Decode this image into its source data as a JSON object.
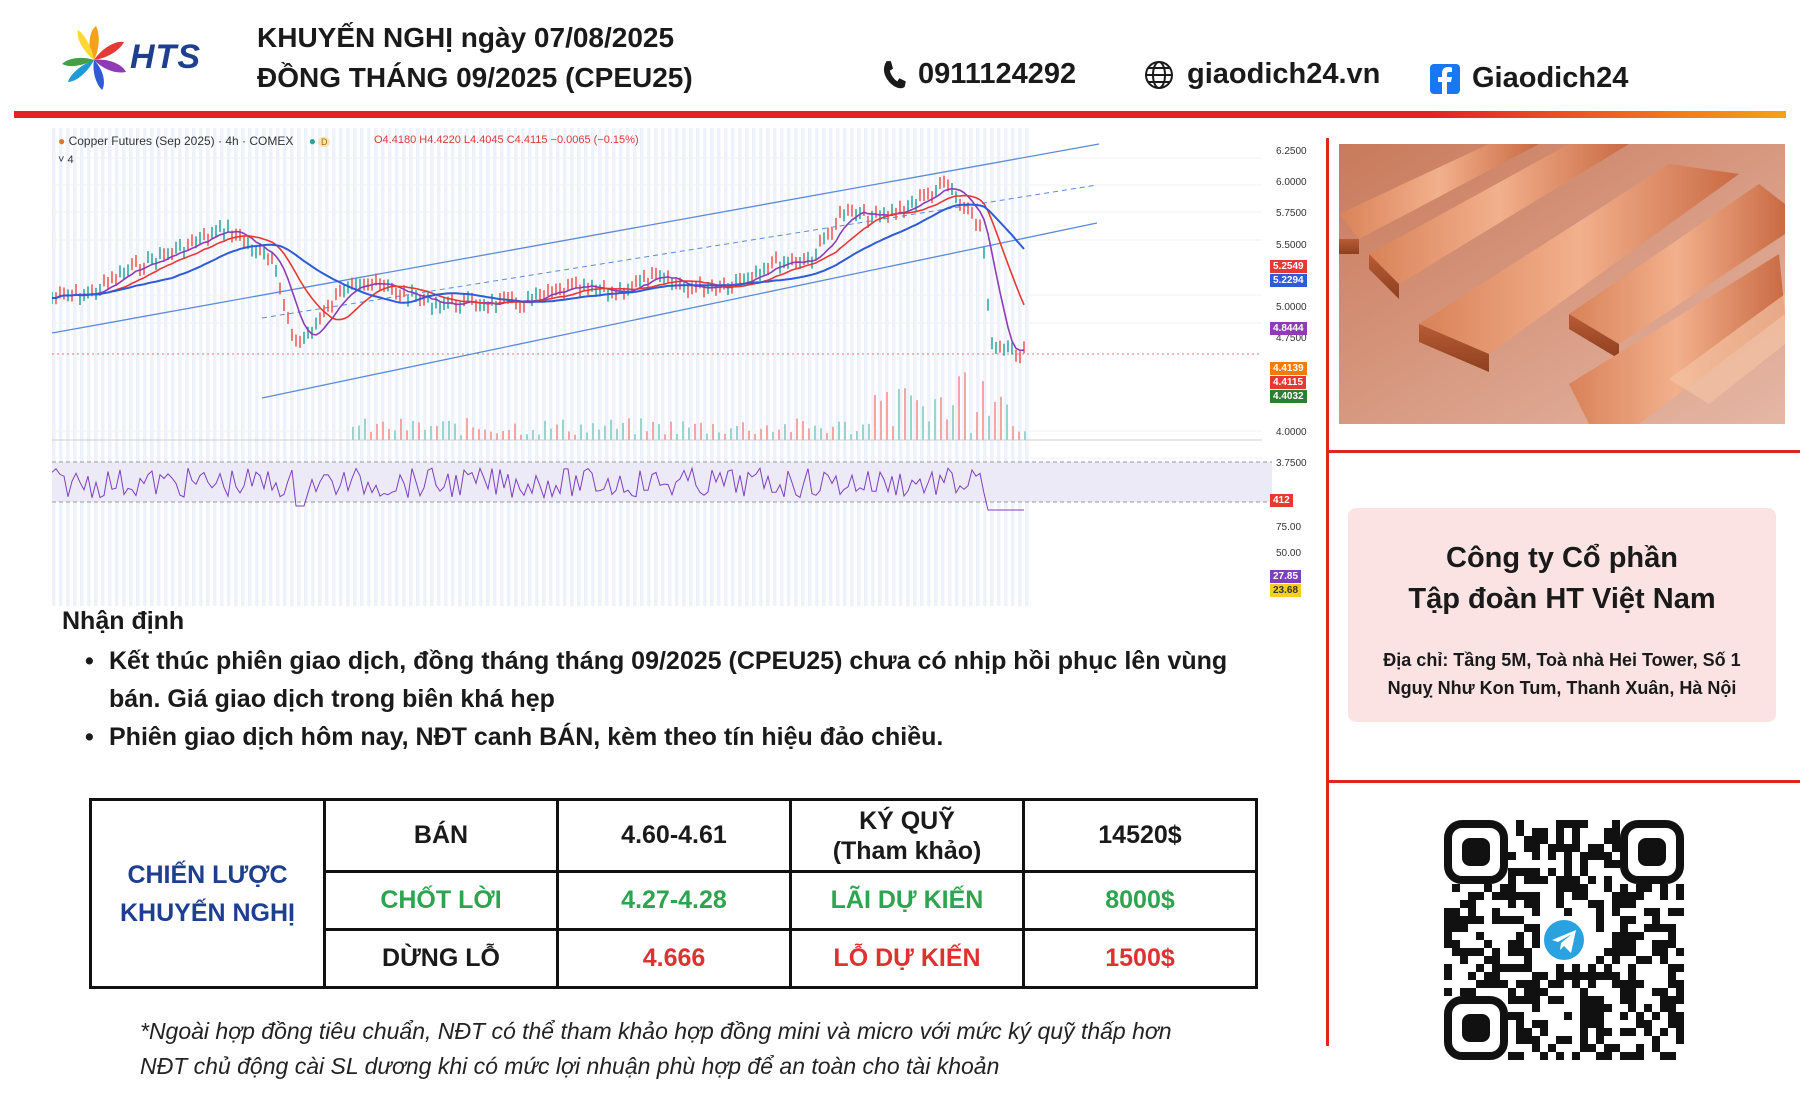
{
  "header": {
    "logo_text": "HTS",
    "title_line1": "KHUYẾN NGHỊ ngày 07/08/2025",
    "title_line2": "ĐỒNG THÁNG 09/2025 (CPEU25)",
    "phone": "0911124292",
    "website": "giaodich24.vn",
    "facebook": "Giaodich24"
  },
  "chart": {
    "title": "Copper Futures (Sep 2025) · 4h · COMEX",
    "ohlc": "O4.4180  H4.4220  L4.4045  C4.4115  −0.0065 (−0.15%)",
    "indicator_count": "4",
    "price_axis": [
      "6.2500",
      "6.0000",
      "5.7500",
      "5.5000",
      "5.0000",
      "4.7500",
      "4.0000",
      "3.7500"
    ],
    "price_tags": [
      {
        "label": "5.2549",
        "color": "#e53935"
      },
      {
        "label": "5.2294",
        "color": "#2f5bd6"
      },
      {
        "label": "4.8444",
        "color": "#8e3bb5"
      },
      {
        "label": "4.4139",
        "color": "#f57c00"
      },
      {
        "label": "4.4115",
        "color": "#e53935"
      },
      {
        "label": "4.4032",
        "color": "#2e7d32"
      }
    ],
    "volume_tag": "412",
    "rsi_axis": [
      "75.00",
      "50.00"
    ],
    "rsi_tags": [
      {
        "label": "27.85",
        "color": "#7e3fbf"
      },
      {
        "label": "23.68",
        "color": "#f5d020"
      }
    ],
    "colors": {
      "candle_up": "#26a69a",
      "candle_down": "#ef5350",
      "ma_fast": "#8e3bb5",
      "ma_mid": "#e53935",
      "ma_slow": "#2f5bd6",
      "channel": "#5b8bd9"
    }
  },
  "analysis": {
    "heading": "Nhận định",
    "bullet1_line1": "Kết thúc phiên giao dịch, đồng tháng tháng 09/2025 (CPEU25) chưa có nhịp hồi phục lên vùng",
    "bullet1_line2": "bán. Giá giao dịch trong biên khá hẹp",
    "bullet2": "Phiên giao dịch hôm nay, NĐT canh BÁN, kèm theo tín hiệu đảo chiều."
  },
  "strategy": {
    "label_line1": "CHIẾN LƯỢC",
    "label_line2": "KHUYẾN NGHỊ",
    "row1": {
      "action": "BÁN",
      "range": "4.60-4.61",
      "key_line1": "KÝ QUỸ",
      "key_line2": "(Tham khảo)",
      "value": "14520$"
    },
    "row2": {
      "action": "CHỐT LỜI",
      "range": "4.27-4.28",
      "key": "LÃI DỰ KIẾN",
      "value": "8000$"
    },
    "row3": {
      "action": "DỪNG LỖ",
      "range": "4.666",
      "key": "LỖ DỰ KIẾN",
      "value": "1500$"
    }
  },
  "notes": {
    "line1": "*Ngoài hợp đồng tiêu chuẩn, NĐT có thể tham khảo hợp đồng mini và micro với mức ký quỹ thấp hơn",
    "line2": "NĐT chủ động cài SL dương khi có mức lợi nhuận phù hợp để an toàn cho tài khoản"
  },
  "company": {
    "name_line1": "Công ty Cổ phần",
    "name_line2": "Tập đoàn HT Việt Nam",
    "address_line1": "Địa chỉ: Tầng 5M, Toà nhà Hei Tower, Số 1",
    "address_line2": "Nguỵ Như Kon Tum, Thanh Xuân, Hà Nội"
  },
  "icons": [
    "phone-icon",
    "globe-icon",
    "facebook-icon",
    "telegram-icon"
  ]
}
